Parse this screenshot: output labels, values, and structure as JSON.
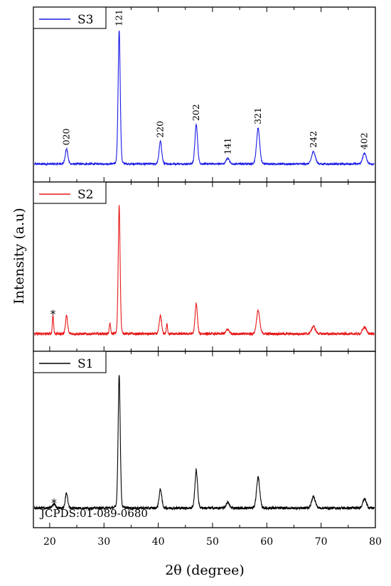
{
  "chart_data": {
    "type": "line",
    "xlabel": "2θ (degree)",
    "ylabel": "Intensity (a.u)",
    "xlim": [
      17,
      80
    ],
    "xticks": [
      20,
      30,
      40,
      50,
      60,
      70,
      80
    ],
    "grid": false,
    "legend_position": "top-left",
    "note": "JCPDS:01-089-0680",
    "panels": [
      {
        "name": "S3",
        "color": "#1a1ae6",
        "baseline": 8,
        "noise": 1.0,
        "peaks": [
          {
            "x": 23.1,
            "h": 18,
            "w": 0.25,
            "label": "020"
          },
          {
            "x": 32.8,
            "h": 160,
            "w": 0.2,
            "label": "121"
          },
          {
            "x": 40.4,
            "h": 27,
            "w": 0.25,
            "label": "220"
          },
          {
            "x": 47.0,
            "h": 47,
            "w": 0.25,
            "label": "202"
          },
          {
            "x": 52.8,
            "h": 7,
            "w": 0.3,
            "label": "141"
          },
          {
            "x": 58.4,
            "h": 43,
            "w": 0.3,
            "label": "321"
          },
          {
            "x": 68.6,
            "h": 15,
            "w": 0.35,
            "label": "242"
          },
          {
            "x": 78.0,
            "h": 13,
            "w": 0.35,
            "label": "402"
          }
        ],
        "stars": []
      },
      {
        "name": "S2",
        "color": "#e61a1a",
        "baseline": 8,
        "noise": 1.6,
        "peaks": [
          {
            "x": 20.6,
            "h": 25,
            "w": 0.12
          },
          {
            "x": 23.1,
            "h": 24,
            "w": 0.2
          },
          {
            "x": 31.1,
            "h": 14,
            "w": 0.12
          },
          {
            "x": 32.8,
            "h": 170,
            "w": 0.18
          },
          {
            "x": 40.4,
            "h": 24,
            "w": 0.22
          },
          {
            "x": 41.6,
            "h": 13,
            "w": 0.12
          },
          {
            "x": 47.0,
            "h": 40,
            "w": 0.22
          },
          {
            "x": 52.8,
            "h": 6,
            "w": 0.3
          },
          {
            "x": 58.4,
            "h": 31,
            "w": 0.3
          },
          {
            "x": 68.6,
            "h": 10,
            "w": 0.35
          },
          {
            "x": 78.0,
            "h": 9,
            "w": 0.35
          }
        ],
        "stars": [
          {
            "x": 20.6,
            "label": "*"
          }
        ]
      },
      {
        "name": "S1",
        "color": "#000000",
        "baseline": 10,
        "noise": 1.6,
        "peaks": [
          {
            "x": 20.8,
            "h": 5,
            "w": 0.3
          },
          {
            "x": 23.1,
            "h": 19,
            "w": 0.22
          },
          {
            "x": 32.8,
            "h": 163,
            "w": 0.2
          },
          {
            "x": 40.4,
            "h": 23,
            "w": 0.25
          },
          {
            "x": 47.0,
            "h": 46,
            "w": 0.25
          },
          {
            "x": 52.8,
            "h": 7,
            "w": 0.3
          },
          {
            "x": 58.4,
            "h": 38,
            "w": 0.3
          },
          {
            "x": 68.6,
            "h": 14,
            "w": 0.35
          },
          {
            "x": 78.0,
            "h": 11,
            "w": 0.35
          }
        ],
        "stars": [
          {
            "x": 20.8,
            "label": "*"
          }
        ]
      }
    ]
  }
}
